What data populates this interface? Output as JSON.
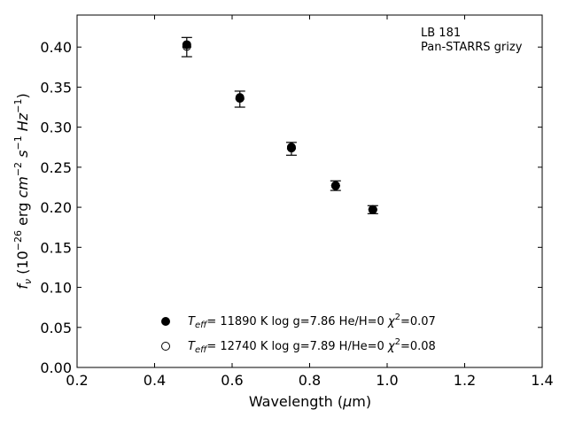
{
  "chart_data": {
    "type": "scatter",
    "xlabel": "Wavelength (μm)",
    "ylabel": "f_ν (10^-26 erg cm^-2 s^-1 Hz^-1)",
    "xlim": [
      0.2,
      1.4
    ],
    "ylim": [
      0.0,
      0.44
    ],
    "xticks": [
      "0.2",
      "0.4",
      "0.6",
      "0.8",
      "1.0",
      "1.2",
      "1.4"
    ],
    "yticks": [
      "0.00",
      "0.05",
      "0.10",
      "0.15",
      "0.20",
      "0.25",
      "0.30",
      "0.35",
      "0.40"
    ],
    "xtick_values": [
      0.2,
      0.4,
      0.6,
      0.8,
      1.0,
      1.2,
      1.4
    ],
    "ytick_values": [
      0.0,
      0.05,
      0.1,
      0.15,
      0.2,
      0.25,
      0.3,
      0.35,
      0.4
    ],
    "grid": false,
    "annotation": [
      "LB 181",
      "Pan-STARRS grizy"
    ],
    "observed": {
      "x": [
        0.483,
        0.62,
        0.753,
        0.867,
        0.963
      ],
      "y": [
        0.4,
        0.335,
        0.273,
        0.227,
        0.197
      ],
      "yerr": [
        0.012,
        0.01,
        0.008,
        0.006,
        0.005
      ]
    },
    "series": [
      {
        "name": "T_eff= 11890 K  log g=7.86  He/H=0  χ²=0.07",
        "marker": "filled-circle",
        "x": [
          0.483,
          0.62,
          0.753,
          0.867,
          0.963
        ],
        "y": [
          0.403,
          0.337,
          0.275,
          0.227,
          0.197
        ]
      },
      {
        "name": "T_eff= 12740 K  log g=7.89  H/He=0  χ²=0.08",
        "marker": "open-circle",
        "x": [
          0.483,
          0.62,
          0.753,
          0.867,
          0.963
        ],
        "y": [
          0.401,
          0.336,
          0.274,
          0.227,
          0.197
        ]
      }
    ],
    "legend": [
      {
        "marker": "filled-circle",
        "teff": "11890",
        "rest": "= 11890 K  log g=7.86  He/H=0  ",
        "chi": "=0.07"
      },
      {
        "marker": "open-circle",
        "teff": "12740",
        "rest": "= 12740 K  log g=7.89  H/He=0  ",
        "chi": "=0.08"
      }
    ],
    "legend_placement": "lower-center"
  }
}
